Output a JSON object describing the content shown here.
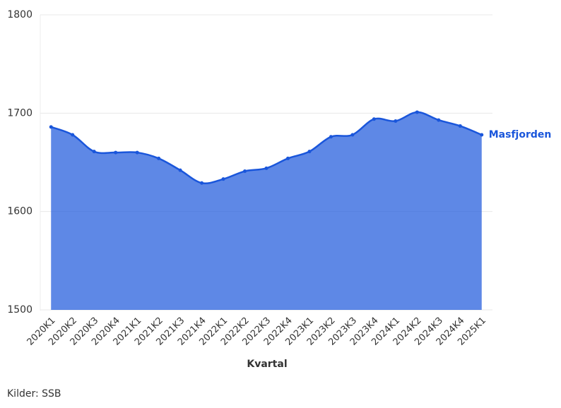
{
  "chart_data": {
    "type": "area",
    "x_label": "Kvartal",
    "source": "Kilder: SSB",
    "categories": [
      "2020K1",
      "2020K2",
      "2020K3",
      "2020K4",
      "2021K1",
      "2021K2",
      "2021K3",
      "2021K4",
      "2022K1",
      "2022K2",
      "2022K3",
      "2022K4",
      "2023K1",
      "2023K2",
      "2023K3",
      "2023K4",
      "2024K1",
      "2024K2",
      "2024K3",
      "2024K4",
      "2025K1"
    ],
    "series": [
      {
        "name": "Masfjorden",
        "color": "#1a56db",
        "values": [
          1686,
          1678,
          1661,
          1660,
          1660,
          1654,
          1642,
          1629,
          1633,
          1641,
          1644,
          1654,
          1661,
          1676,
          1678,
          1694,
          1692,
          1701,
          1693,
          1687,
          1678
        ]
      }
    ],
    "ylim": [
      1500,
      1800
    ],
    "yticks": [
      1500,
      1600,
      1700,
      1800
    ],
    "grid": true
  }
}
